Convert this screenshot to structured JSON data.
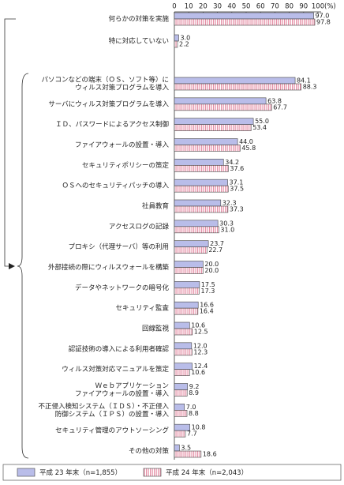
{
  "chart_data": {
    "type": "hbar",
    "unit": "(%)",
    "categories": [
      [
        "何らかの対策を実施"
      ],
      [
        "特に対応していない"
      ],
      [
        "パソコンなどの端末（ＯＳ、ソフト等）に",
        "ウィルス対策プログラムを導入"
      ],
      [
        "サーバにウィルス対策プログラムを導入"
      ],
      [
        "ＩＤ、パスワードによるアクセス制御"
      ],
      [
        "ファイアウォールの設置・導入"
      ],
      [
        "セキュリティポリシーの策定"
      ],
      [
        "ＯＳへのセキュリティパッチの導入"
      ],
      [
        "社員教育"
      ],
      [
        "アクセスログの記録"
      ],
      [
        "プロキシ（代理サーバ）等の利用"
      ],
      [
        "外部接続の際にウィルスウォールを構築"
      ],
      [
        "データやネットワークの暗号化"
      ],
      [
        "セキュリティ監査"
      ],
      [
        "回線監視"
      ],
      [
        "認証技術の導入による利用者確認"
      ],
      [
        "ウィルス対策対応マニュアルを策定"
      ],
      [
        "Ｗｅｂアプリケーション",
        "ファイアウォールの設置・導入"
      ],
      [
        "不正侵入検知システム（ＩＤＳ）・不正侵入",
        "防御システム（ＩＰＳ）の設置・導入"
      ],
      [
        "セキュリティ管理のアウトソーシング"
      ],
      [
        "その他の対策"
      ]
    ],
    "series": [
      {
        "name": "平成 23 年末（n=1,855）",
        "color": "#b9bde9",
        "pattern": "solid",
        "values": [
          97.0,
          3.0,
          84.1,
          63.8,
          55.0,
          44.0,
          34.2,
          37.1,
          32.3,
          30.3,
          23.7,
          20.0,
          17.5,
          16.6,
          10.6,
          12.0,
          12.4,
          9.2,
          7.0,
          10.8,
          3.5
        ],
        "value_labels": [
          "97.0",
          "3.0",
          "84.1",
          "63.8",
          "55.0",
          "44.0",
          "34.2",
          "37.1",
          "32.3",
          "30.3",
          "23.7",
          "20.0",
          "17.5",
          "16.6",
          "10.6",
          "12.0",
          "12.4",
          "9.2",
          "7.0",
          "10.8",
          "3.5"
        ]
      },
      {
        "name": "平成 24 年末（n=2,043）",
        "color": "#e58fa6",
        "pattern": "stripes",
        "values": [
          97.8,
          2.2,
          88.3,
          67.7,
          53.4,
          45.8,
          37.6,
          37.5,
          37.3,
          31.0,
          22.7,
          20.0,
          17.3,
          16.4,
          12.5,
          12.3,
          10.6,
          8.9,
          8.8,
          7.7,
          18.6
        ],
        "value_labels": [
          "97.8",
          "2.2",
          "88.3",
          "67.7",
          "53.4",
          "45.8",
          "37.6",
          "37.5",
          "37.3",
          "31.0",
          "22.7",
          "20.0",
          "17.3",
          "16.4",
          "12.5",
          "12.3",
          "10.6",
          "8.9",
          "8.8",
          "7.7",
          "18.6"
        ]
      }
    ],
    "xlim": [
      0,
      100
    ],
    "xticks": [
      0,
      10,
      20,
      30,
      40,
      50,
      60,
      70,
      80,
      90,
      100
    ]
  }
}
